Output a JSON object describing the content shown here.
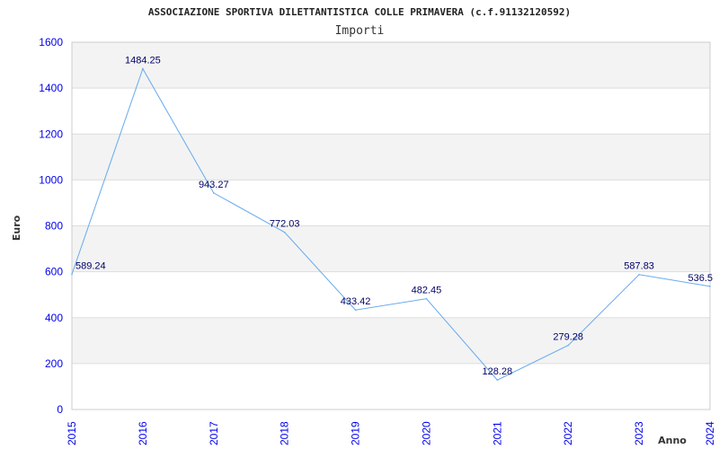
{
  "chart_data": {
    "type": "line",
    "title": "ASSOCIAZIONE SPORTIVA DILETTANTISTICA COLLE PRIMAVERA (c.f.91132120592)",
    "subtitle": "Importi",
    "xlabel": "Anno",
    "ylabel": "Euro",
    "categories": [
      "2015",
      "2016",
      "2017",
      "2018",
      "2019",
      "2020",
      "2021",
      "2022",
      "2023",
      "2024"
    ],
    "values": [
      589.24,
      1484.25,
      943.27,
      772.03,
      433.42,
      482.45,
      128.28,
      279.28,
      587.83,
      536.5
    ],
    "data_labels": [
      "589.24",
      "1484.25",
      "943.27",
      "772.03",
      "433.42",
      "482.45",
      "128.28",
      "279.28",
      "587.83",
      "536.5"
    ],
    "yticks": [
      0,
      200,
      400,
      600,
      800,
      1000,
      1200,
      1400,
      1600
    ],
    "ylim": [
      0,
      1600
    ],
    "grid": true,
    "colors": {
      "line": "#66aaee",
      "band": "#f3f3f3",
      "grid": "#dddddd",
      "ticks": "#0000ee"
    }
  }
}
